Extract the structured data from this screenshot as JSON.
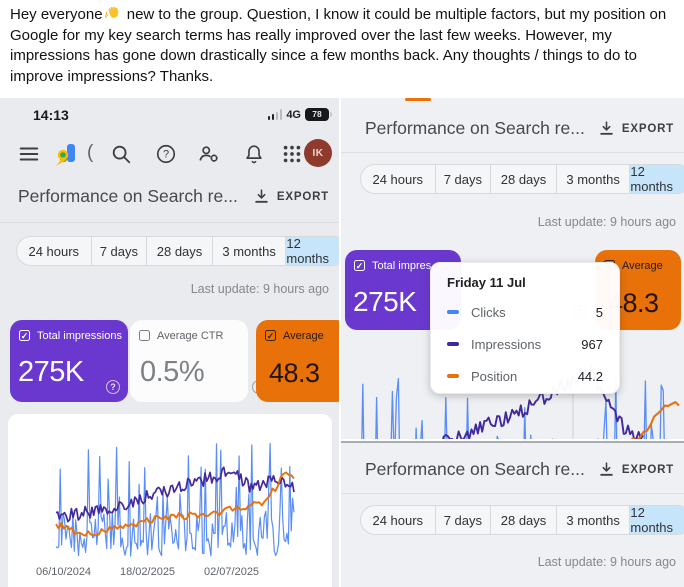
{
  "post": {
    "text_start": "Hey everyone",
    "text_end": "new to the group. Question, I know it could be multiple factors, but my position on Google for my key search terms has really improved over the last few weeks. However, my impressions has gone down drastically since a few months back. Any thoughts / things to do to improve impressions? Thanks."
  },
  "status_bar": {
    "time": "14:13",
    "network": "4G",
    "battery_level": "78"
  },
  "app_bar": {
    "partial_text": "(",
    "avatar_initials": "IK"
  },
  "report": {
    "title": "Performance on Search re...",
    "export_label": "EXPORT",
    "tabs": [
      "24 hours",
      "7 days",
      "28 days",
      "3 months",
      "12 months"
    ],
    "selected_tab": "12 months",
    "last_update": "Last update: 9 hours ago"
  },
  "cards": {
    "impressions_label": "Total impressions",
    "impressions_label_short": "Total impres",
    "impressions_value": "275K",
    "ctr_label": "Average CTR",
    "ctr_value": "0.5%",
    "position_label": "Average",
    "position_value": "48.3"
  },
  "tooltip": {
    "date": "Friday 11 Jul",
    "rows": [
      {
        "label": "Clicks",
        "value": "5",
        "color": "#4285f4"
      },
      {
        "label": "Impressions",
        "value": "967",
        "color": "#3e2a9e"
      },
      {
        "label": "Position",
        "value": "44.2",
        "color": "#e8710a"
      }
    ]
  },
  "chart_data": {
    "type": "line",
    "x_ticks": [
      "06/10/2024",
      "18/02/2025",
      "02/07/2025"
    ],
    "series": [
      {
        "name": "Clicks",
        "color": "#5a8df5"
      },
      {
        "name": "Impressions",
        "color": "#43299e"
      },
      {
        "name": "Position",
        "color": "#e8710a"
      }
    ],
    "sample_point": {
      "date": "Friday 11 Jul",
      "clicks": 5,
      "impressions": 967,
      "position": 44.2
    },
    "summary": {
      "total_impressions": "275K",
      "average_ctr": "0.5%",
      "average_position": "48.3"
    }
  },
  "colors": {
    "impressions_card": "#6a38cf",
    "position_card": "#e8710a",
    "selected_tab_bg": "#c7e5fa",
    "clicks_line": "#5a8df5",
    "impressions_line": "#43299e",
    "position_line": "#e8710a"
  }
}
